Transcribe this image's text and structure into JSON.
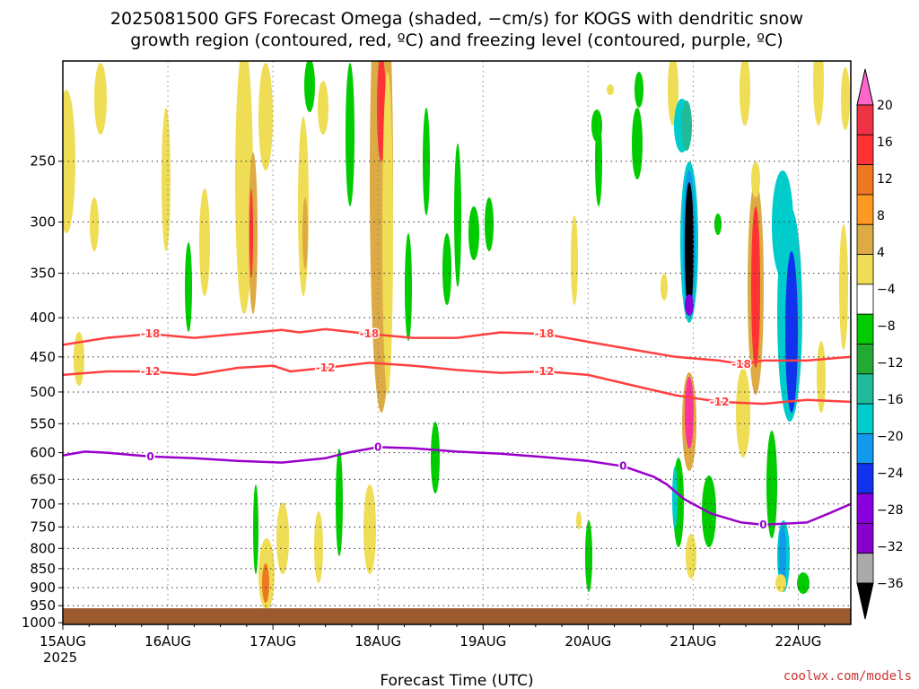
{
  "title_line1": "2025081500 GFS Forecast Omega (shaded, −cm/s) for KOGS with dendritic snow",
  "title_line2": "growth region (contoured, red, ºC) and freezing level (contoured, purple, ºC)",
  "credit": "coolwx.com/models",
  "colors": {
    "temp_contour": "#ff4040",
    "freezing_contour": "#9900cc",
    "ground": "#9b5a2e"
  },
  "chart_data": {
    "type": "heatmap",
    "xlabel": "Forecast Time (UTC)",
    "ylabel": "",
    "x_ticks": [
      "15AUG",
      "16AUG",
      "17AUG",
      "18AUG",
      "19AUG",
      "20AUG",
      "21AUG",
      "22AUG"
    ],
    "x_year": "2025",
    "xlim_hours": [
      0,
      180
    ],
    "y_ticks": [
      250,
      300,
      350,
      400,
      450,
      500,
      550,
      600,
      650,
      700,
      750,
      800,
      850,
      900,
      950,
      1000
    ],
    "ylim": [
      1005,
      185
    ],
    "y_scale": "log-pressure",
    "grid": true,
    "colorbar": {
      "labels": [
        "20",
        "16",
        "12",
        "8",
        "4",
        "−4",
        "−8",
        "−12",
        "−16",
        "−20",
        "−24",
        "−28",
        "−32",
        "−36"
      ],
      "colors": [
        "#ff66cc",
        "#ee3344",
        "#ff3333",
        "#ee7722",
        "#ff9922",
        "#ddaa44",
        "#eedd55",
        "#ffffff",
        "#00cc00",
        "#22aa33",
        "#22bb99",
        "#00cccc",
        "#1199ee",
        "#1133ee",
        "#8800dd",
        "#8800cc",
        "#aaaaaa",
        "#000000"
      ]
    },
    "contours": [
      {
        "label": "-18",
        "color": "red",
        "points": [
          [
            0,
            434
          ],
          [
            10,
            425
          ],
          [
            20,
            420
          ],
          [
            30,
            425
          ],
          [
            40,
            420
          ],
          [
            50,
            415
          ],
          [
            54,
            418
          ],
          [
            60,
            414
          ],
          [
            70,
            420
          ],
          [
            80,
            425
          ],
          [
            90,
            425
          ],
          [
            100,
            418
          ],
          [
            110,
            420
          ],
          [
            120,
            430
          ],
          [
            130,
            440
          ],
          [
            140,
            450
          ],
          [
            150,
            455
          ],
          [
            155,
            460
          ],
          [
            160,
            455
          ],
          [
            170,
            455
          ],
          [
            180,
            450
          ]
        ]
      },
      {
        "label": "-12",
        "color": "red",
        "points": [
          [
            0,
            475
          ],
          [
            10,
            470
          ],
          [
            20,
            470
          ],
          [
            30,
            475
          ],
          [
            40,
            465
          ],
          [
            48,
            462
          ],
          [
            52,
            470
          ],
          [
            60,
            465
          ],
          [
            70,
            458
          ],
          [
            80,
            462
          ],
          [
            90,
            468
          ],
          [
            100,
            472
          ],
          [
            110,
            470
          ],
          [
            120,
            475
          ],
          [
            130,
            490
          ],
          [
            140,
            505
          ],
          [
            150,
            515
          ],
          [
            160,
            518
          ],
          [
            170,
            512
          ],
          [
            180,
            515
          ]
        ]
      },
      {
        "label": "0",
        "color": "purple",
        "points": [
          [
            0,
            605
          ],
          [
            5,
            598
          ],
          [
            10,
            600
          ],
          [
            20,
            607
          ],
          [
            30,
            610
          ],
          [
            40,
            615
          ],
          [
            50,
            618
          ],
          [
            60,
            610
          ],
          [
            65,
            600
          ],
          [
            72,
            590
          ],
          [
            80,
            592
          ],
          [
            90,
            598
          ],
          [
            100,
            602
          ],
          [
            110,
            608
          ],
          [
            120,
            615
          ],
          [
            128,
            625
          ],
          [
            135,
            645
          ],
          [
            138,
            660
          ],
          [
            142,
            690
          ],
          [
            148,
            720
          ],
          [
            155,
            740
          ],
          [
            160,
            745
          ],
          [
            170,
            740
          ],
          [
            175,
            720
          ],
          [
            180,
            700
          ]
        ]
      }
    ]
  }
}
